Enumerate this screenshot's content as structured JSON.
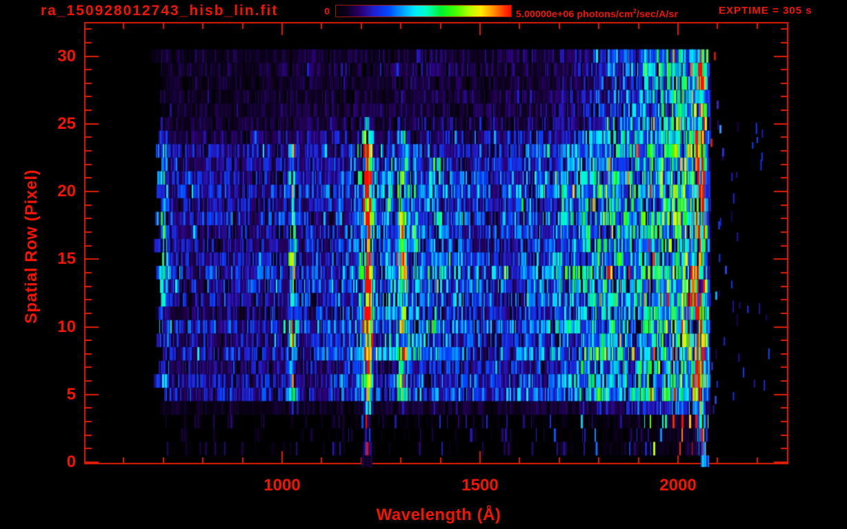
{
  "window": {
    "background": "#000000",
    "text_color": "#f51400",
    "frame_color": "#e41e00"
  },
  "chart_data": {
    "type": "heatmap",
    "title": "ra_150928012743_hisb_lin.fit",
    "exptime": "EXPTIME = 305 s",
    "xlabel": "Wavelength (Å)",
    "ylabel": "Spatial Row (Pixel)",
    "colorbar": {
      "min_label": "0",
      "max_label_pre": "5.00000e+06 photons/cm",
      "max_label_sup": "2",
      "max_label_post": "/sec/A/sr",
      "colormap": [
        [
          0,
          "#000000"
        ],
        [
          0.06,
          "#0d0020"
        ],
        [
          0.14,
          "#2a0070"
        ],
        [
          0.22,
          "#2020d0"
        ],
        [
          0.3,
          "#0048ff"
        ],
        [
          0.38,
          "#00a0ff"
        ],
        [
          0.45,
          "#00e8ff"
        ],
        [
          0.52,
          "#00ffc0"
        ],
        [
          0.6,
          "#00f030"
        ],
        [
          0.68,
          "#40ff00"
        ],
        [
          0.76,
          "#b0ff00"
        ],
        [
          0.83,
          "#ffe800"
        ],
        [
          0.9,
          "#ff9000"
        ],
        [
          0.96,
          "#ff3800"
        ],
        [
          1,
          "#ff0800"
        ]
      ]
    },
    "axes": {
      "x_major_ticks": [
        1000,
        1500,
        2000
      ],
      "x_major_labels": [
        "1000",
        "1500",
        "2000"
      ],
      "x_minor_step": 100,
      "x_minor_range": [
        600,
        2200
      ],
      "y_major_ticks": [
        0,
        5,
        10,
        15,
        20,
        25,
        30
      ],
      "y_minor_step": 1,
      "y_minor_range": [
        0,
        32
      ]
    },
    "heatmap": {
      "seed": 150928,
      "wavelength_extent": [
        670,
        2082
      ],
      "row_extent": [
        0,
        30
      ],
      "row_gains": [
        0.02,
        0.05,
        0.05,
        0.07,
        0.28,
        1.05,
        0.95,
        0.78,
        1.1,
        0.9,
        1.15,
        0.82,
        1.0,
        1.1,
        1.18,
        1.05,
        0.88,
        0.95,
        1.1,
        0.92,
        1.12,
        1.0,
        0.86,
        0.92,
        0.68,
        0.46,
        0.38,
        0.4,
        0.36,
        0.42,
        0.38
      ],
      "row_start_wavelengths": [
        1200,
        700,
        697,
        703,
        692,
        702,
        676,
        688,
        699,
        683,
        690,
        678,
        694,
        687,
        682,
        697,
        674,
        689,
        680,
        692,
        677,
        684,
        695,
        681,
        688,
        692,
        695,
        691,
        698,
        694,
        670
      ],
      "continuum": [
        [
          670,
          0.18
        ],
        [
          760,
          0.2
        ],
        [
          900,
          0.2
        ],
        [
          1000,
          0.22
        ],
        [
          1100,
          0.24
        ],
        [
          1180,
          0.26
        ],
        [
          1240,
          0.21
        ],
        [
          1300,
          0.32
        ],
        [
          1370,
          0.31
        ],
        [
          1450,
          0.27
        ],
        [
          1550,
          0.26
        ],
        [
          1650,
          0.31
        ],
        [
          1750,
          0.4
        ],
        [
          1815,
          0.5
        ],
        [
          1870,
          0.43
        ],
        [
          1920,
          0.47
        ],
        [
          1980,
          0.54
        ],
        [
          2020,
          0.58
        ],
        [
          2045,
          0.72
        ],
        [
          2062,
          0.85
        ],
        [
          2072,
          0.45
        ],
        [
          2082,
          0.15
        ]
      ],
      "lines": [
        {
          "name": "short-wave line ~700 A",
          "wavelength": 700,
          "sigma": 9,
          "amp": 0.18,
          "row_min": 5,
          "row_max": 25
        },
        {
          "name": "Lyman-beta ~1026 A",
          "wavelength": 1026,
          "sigma": 5.5,
          "amp": 0.35,
          "row_min": 4,
          "row_max": 23
        },
        {
          "name": "Lyman-alpha 1216 A core",
          "wavelength": 1216,
          "sigma": 5.5,
          "amp": 1.0,
          "row_min": 1,
          "row_max": 25
        },
        {
          "name": "Lyman-alpha 1216 A halo",
          "wavelength": 1216,
          "sigma": 13,
          "amp": 0.26,
          "row_min": 4,
          "row_max": 24
        },
        {
          "name": "OI ~1305 A",
          "wavelength": 1305,
          "sigma": 6.5,
          "amp": 0.36,
          "row_min": 4,
          "row_max": 24
        },
        {
          "name": "long-wave edge ~2057 A",
          "wavelength": 2057,
          "sigma": 9,
          "amp": 0.25,
          "row_min": 1,
          "row_max": 30
        }
      ],
      "mid_row_bump": {
        "wavelength": 1300,
        "sigma": 80,
        "amp": 0.08,
        "row_min": 8,
        "row_max": 22
      },
      "low_row_edge": {
        "row_min": 1,
        "row_max": 3,
        "wavelength_range": [
          2052,
          2072
        ],
        "level": 0.5
      },
      "row0_segments": [
        {
          "wavelength_range": [
            1200,
            1226
          ],
          "level": 0.07
        },
        {
          "wavelength_range": [
            2057,
            2077
          ],
          "level": 0.35
        }
      ],
      "outliers": [
        {
          "wavelength": 2092,
          "row": 30,
          "color": "#cc1100"
        },
        {
          "wavelength": 2099,
          "row": 26.4,
          "color": "#4422bb"
        },
        {
          "wavelength": 2106,
          "row": 24.6,
          "color": "#2299ff"
        },
        {
          "wavelength": 2084,
          "row": 23.6,
          "color": "#cc2200"
        },
        {
          "wavelength": 2113,
          "row": 22.9,
          "color": "#2233cc"
        },
        {
          "wavelength": 2094,
          "row": 4.6,
          "color": "#2244cc"
        },
        {
          "wavelength": 2086,
          "row": 7.1,
          "color": "#332299"
        },
        {
          "wavelength": 2103,
          "row": 17.5,
          "color": "#1133cc"
        },
        {
          "wavelength": 2120,
          "row": 14.2,
          "color": "#2244dd"
        },
        {
          "wavelength": 2096,
          "row": 12.3,
          "color": "#00aaff"
        }
      ]
    }
  }
}
